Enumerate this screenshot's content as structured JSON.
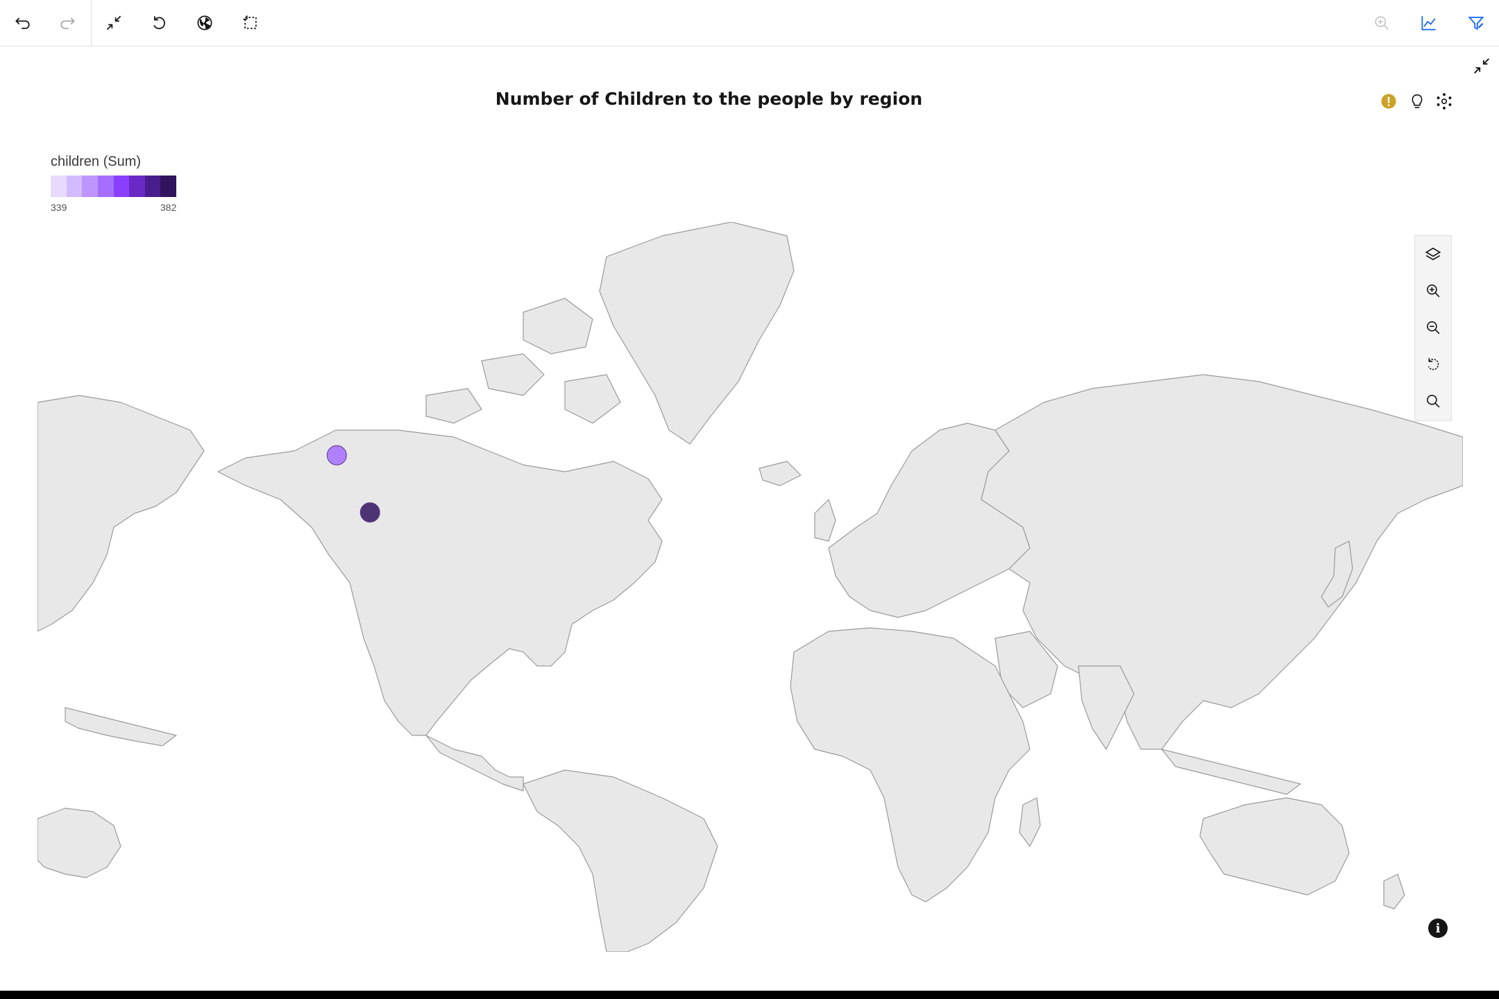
{
  "toolbar": {
    "left_icons": [
      "undo-icon",
      "redo-icon",
      "collapse-icon",
      "reset-icon",
      "globe-icon",
      "marquee-select-icon"
    ],
    "right_icons": [
      "zoom-in-icon",
      "line-chart-icon",
      "filter-icon"
    ]
  },
  "chart": {
    "title": "Number of Children to the people by region"
  },
  "legend": {
    "title": "children (Sum)",
    "min_label": "339",
    "max_label": "382",
    "colors": [
      "#e8daff",
      "#d4bbff",
      "#be95ff",
      "#a56eff",
      "#8a3ffc",
      "#6929c4",
      "#491d8b",
      "#31135e"
    ]
  },
  "map_controls": [
    "layers-icon",
    "zoom-in-icon",
    "zoom-out-icon",
    "reset-view-icon",
    "search-icon"
  ],
  "colors": {
    "land": "#e8e8e8",
    "land_stroke": "#9a9a9a",
    "warning": "#c9a227",
    "accent": "#0f62fe"
  },
  "chart_data": {
    "type": "bubble-map",
    "measure": "children (Sum)",
    "color_range": [
      339,
      382
    ],
    "points": [
      {
        "lon": -97.4,
        "lat": 46.0,
        "value": 360
      },
      {
        "lon": -89.0,
        "lat": 38.0,
        "value": 382
      }
    ]
  }
}
